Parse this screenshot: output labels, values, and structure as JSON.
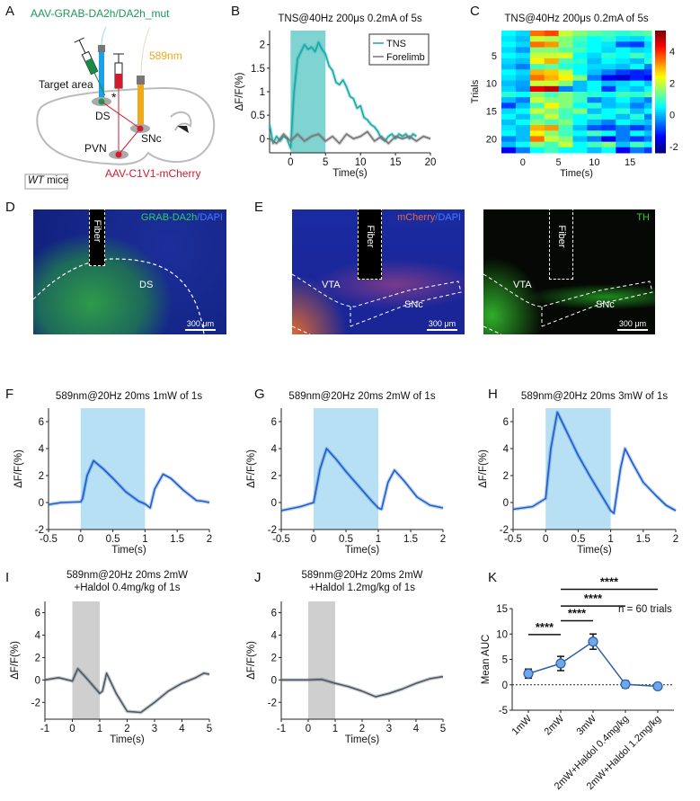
{
  "panel_labels": {
    "a": "A",
    "b": "B",
    "c": "C",
    "d": "D",
    "e": "E",
    "f": "F",
    "g": "G",
    "h": "H",
    "i": "I",
    "j": "J",
    "k": "K"
  },
  "panel_a": {
    "virus_green": "AAV-GRAB-DA2h/DA2h_mut",
    "laser": "589nm",
    "target": "Target area",
    "asterisk": "*",
    "ds": "DS",
    "snc": "SNc",
    "pvn": "PVN",
    "virus_red": "AAV-C1V1-mCherry",
    "mice_italic": "WT",
    "mice": " mice",
    "colors": {
      "green": "#1a9a55",
      "orange": "#f0a81c",
      "red": "#d01c2c",
      "blue": "#1ea0e6"
    }
  },
  "panel_d": {
    "stain_green": "GRAB-DA2h",
    "slash": "/",
    "stain_blue": "DAPI",
    "fiber": "Fiber",
    "region": "DS",
    "scale": "300 μm"
  },
  "panel_e": {
    "left": {
      "stain_red": "mCherry",
      "slash": "/",
      "stain_blue": "DAPI",
      "fiber": "Fiber",
      "vta": "VTA",
      "snc": "SNc",
      "scale": "300 μm"
    },
    "right": {
      "stain": "TH",
      "fiber": "Fiber",
      "vta": "VTA",
      "snc": "SNc",
      "scale": "300 μm"
    }
  },
  "chart_data": [
    {
      "id": "B",
      "type": "line",
      "title": "TNS@40Hz 200μs 0.2mA of 5s",
      "xlabel": "Time(s)",
      "ylabel": "ΔF/F(%)",
      "xlim": [
        -3,
        20
      ],
      "ylim": [
        -0.3,
        2.3
      ],
      "xticks": [
        0,
        5,
        10,
        15,
        20
      ],
      "yticks": [
        0,
        0.5,
        1,
        1.5,
        2
      ],
      "shade": [
        0,
        5
      ],
      "shade_color": "#7fd3d0",
      "legend": "top-right",
      "series": [
        {
          "name": "TNS",
          "color": "#1aa8a8",
          "x": [
            -3,
            -2.5,
            -2,
            -1.5,
            -1,
            -0.5,
            0,
            0.5,
            1,
            1.5,
            2,
            2.5,
            3,
            3.5,
            4,
            4.5,
            5,
            5.5,
            6,
            6.5,
            7,
            7.5,
            8,
            8.5,
            9,
            9.5,
            10,
            10.5,
            11,
            11.5,
            12,
            12.5,
            13,
            13.5,
            14,
            14.5,
            15,
            15.5,
            16,
            16.5,
            17,
            17.5,
            18
          ],
          "y": [
            0.3,
            -0.1,
            0.05,
            -0.05,
            0.05,
            0,
            -0.2,
            1.0,
            1.7,
            1.85,
            2.0,
            1.9,
            1.95,
            1.85,
            2.05,
            1.9,
            1.8,
            1.55,
            1.45,
            1.2,
            1.15,
            1.25,
            1.1,
            0.9,
            0.85,
            0.65,
            0.7,
            0.45,
            0.4,
            0.3,
            0.25,
            0.15,
            0.0,
            -0.05,
            0.05,
            0.1,
            0.0,
            0.1,
            0.05,
            0.1,
            0.0,
            0.1,
            0.05
          ]
        },
        {
          "name": "Forelimb",
          "color": "#777777",
          "x": [
            -3,
            -2,
            -1,
            0,
            1,
            2,
            3,
            4,
            5,
            6,
            7,
            8,
            9,
            10,
            11,
            12,
            13,
            14,
            15,
            16,
            17,
            18,
            19,
            20
          ],
          "y": [
            0,
            -0.1,
            0.1,
            -0.05,
            0.1,
            -0.05,
            0.05,
            0.1,
            -0.05,
            0.05,
            -0.1,
            0.1,
            0,
            0.05,
            0.15,
            -0.05,
            0.05,
            -0.1,
            0.05,
            0,
            0.05,
            -0.05,
            0.05,
            0
          ]
        }
      ]
    },
    {
      "id": "C",
      "type": "heatmap",
      "title": "TNS@40Hz 200μs 0.2mA of 5s",
      "xlabel": "Time(s)",
      "ylabel": "Trials",
      "xlim": [
        -3,
        18
      ],
      "xticks": [
        0,
        5,
        10,
        15
      ],
      "yticks": [
        5,
        10,
        15,
        20
      ],
      "colorbar_ticks": [
        -2,
        0,
        2,
        4
      ],
      "clim": [
        -2.4,
        5.3
      ],
      "colormap": "jet",
      "bin_start": [
        -3,
        -1,
        1,
        3,
        5,
        7,
        9,
        11,
        13,
        15,
        17
      ],
      "values": [
        [
          0.5,
          0.2,
          3.5,
          3.8,
          2.0,
          1.5,
          1.2,
          1.0,
          0.8,
          1.0,
          1.2
        ],
        [
          0.3,
          0.0,
          2.0,
          1.8,
          1.5,
          1.0,
          0.5,
          0.8,
          0.3,
          0.2,
          0.5
        ],
        [
          0.5,
          0.2,
          3.5,
          3.2,
          1.5,
          0.8,
          0.5,
          0.3,
          -0.8,
          -1.0,
          0.2
        ],
        [
          0.2,
          -0.3,
          1.5,
          1.5,
          1.2,
          1.0,
          0.5,
          0.2,
          0.5,
          0.2,
          0.3
        ],
        [
          0.5,
          0.3,
          2.0,
          2.0,
          2.2,
          0.5,
          0.2,
          0.8,
          0.5,
          1.0,
          0.5
        ],
        [
          0.2,
          0.0,
          2.5,
          3.0,
          1.0,
          0.8,
          0.0,
          0.5,
          0.3,
          0.0,
          0.8
        ],
        [
          0.0,
          -0.5,
          1.0,
          1.2,
          0.8,
          0.5,
          0.2,
          0.2,
          0.0,
          0.5,
          -0.5
        ],
        [
          0.5,
          0.2,
          3.0,
          2.8,
          2.0,
          0.5,
          0.0,
          -0.5,
          -1.0,
          -1.2,
          -1.0
        ],
        [
          0.3,
          0.0,
          3.5,
          3.0,
          2.5,
          1.5,
          -0.5,
          -1.5,
          -1.8,
          -1.2,
          -1.5
        ],
        [
          0.0,
          -0.2,
          2.0,
          2.0,
          1.5,
          0.0,
          0.5,
          0.0,
          0.2,
          0.5,
          0.0
        ],
        [
          0.2,
          -0.3,
          4.5,
          4.8,
          -0.5,
          0.0,
          0.5,
          -1.0,
          0.3,
          0.0,
          0.5
        ],
        [
          0.8,
          0.5,
          1.5,
          1.0,
          1.5,
          1.0,
          0.8,
          0.5,
          1.0,
          0.8,
          1.2
        ],
        [
          0.0,
          -0.5,
          2.0,
          1.5,
          1.5,
          1.0,
          -0.5,
          0.0,
          0.5,
          0.0,
          -0.5
        ],
        [
          -1.0,
          0.0,
          1.0,
          2.5,
          1.5,
          0.5,
          0.8,
          0.0,
          0.2,
          -0.5,
          0.0
        ],
        [
          0.2,
          0.5,
          2.0,
          1.5,
          1.0,
          1.5,
          0.0,
          0.5,
          0.8,
          0.0,
          0.5
        ],
        [
          0.5,
          0.0,
          1.0,
          2.0,
          1.0,
          0.5,
          0.8,
          0.5,
          0.0,
          0.8,
          -0.5
        ],
        [
          0.0,
          0.5,
          1.5,
          1.0,
          1.5,
          0.5,
          0.0,
          -0.5,
          0.5,
          0.2,
          0.0
        ],
        [
          0.3,
          0.0,
          3.0,
          3.2,
          1.0,
          0.0,
          -0.8,
          -1.0,
          -0.5,
          -1.0,
          -0.5
        ],
        [
          0.5,
          0.0,
          2.5,
          1.5,
          1.0,
          0.5,
          1.0,
          0.5,
          -0.5,
          0.5,
          0.0
        ],
        [
          -0.5,
          0.0,
          3.5,
          2.0,
          1.5,
          0.0,
          -0.5,
          -1.5,
          -0.5,
          -1.0,
          -0.5
        ],
        [
          0.0,
          0.5,
          1.5,
          1.0,
          2.0,
          0.5,
          1.0,
          1.5,
          0.0,
          1.0,
          0.5
        ],
        [
          -1.5,
          -0.5,
          0.5,
          1.0,
          0.5,
          0.5,
          0.0,
          0.5,
          -1.5,
          -0.5,
          -1.0
        ]
      ]
    },
    {
      "id": "F",
      "type": "line",
      "title": "589nm@20Hz 20ms 1mW of 1s",
      "xlabel": "Time(s)",
      "ylabel": "ΔF/F(%)",
      "xlim": [
        -0.5,
        2
      ],
      "ylim": [
        -2,
        7
      ],
      "xticks": [
        -0.5,
        0,
        0.5,
        1,
        1.5,
        2
      ],
      "yticks": [
        -2,
        0,
        2,
        4,
        6
      ],
      "shade": [
        0,
        1
      ],
      "shade_color": "#b7e0f5",
      "series": [
        {
          "color": "#1f5fc8",
          "x": [
            -0.5,
            -0.3,
            0,
            0.03,
            0.1,
            0.2,
            0.35,
            0.5,
            0.7,
            0.9,
            1.0,
            1.08,
            1.15,
            1.28,
            1.4,
            1.6,
            1.8,
            1.9,
            2
          ],
          "y": [
            -0.15,
            0,
            0.05,
            0.3,
            2.0,
            3.1,
            2.5,
            1.8,
            0.8,
            0.1,
            -0.1,
            -0.4,
            1.0,
            2.1,
            1.8,
            0.9,
            0.15,
            0.1,
            0
          ]
        }
      ]
    },
    {
      "id": "G",
      "type": "line",
      "title": "589nm@20Hz 20ms 2mW of 1s",
      "xlabel": "Time(s)",
      "ylabel": "ΔF/F(%)",
      "xlim": [
        -0.5,
        2
      ],
      "ylim": [
        -2,
        7
      ],
      "xticks": [
        -0.5,
        0,
        0.5,
        1,
        1.5,
        2
      ],
      "yticks": [
        -2,
        0,
        2,
        4,
        6
      ],
      "shade": [
        0,
        1
      ],
      "shade_color": "#b7e0f5",
      "series": [
        {
          "color": "#1f5fc8",
          "x": [
            -0.5,
            -0.2,
            0,
            0.1,
            0.2,
            0.35,
            0.5,
            0.7,
            0.9,
            1.0,
            1.05,
            1.15,
            1.25,
            1.4,
            1.6,
            1.8,
            2
          ],
          "y": [
            -0.6,
            -0.3,
            0,
            2.5,
            4.0,
            3.2,
            2.3,
            1.2,
            0.1,
            -0.4,
            -0.5,
            1.5,
            2.4,
            1.6,
            0.4,
            -0.2,
            -0.4
          ]
        }
      ]
    },
    {
      "id": "H",
      "type": "line",
      "title": "589nm@20Hz 20ms 3mW of 1s",
      "xlabel": "Time(s)",
      "ylabel": "ΔF/F(%)",
      "xlim": [
        -0.5,
        2
      ],
      "ylim": [
        -2,
        7
      ],
      "xticks": [
        -0.5,
        0,
        0.5,
        1,
        1.5,
        2
      ],
      "yticks": [
        -2,
        0,
        2,
        4,
        6
      ],
      "shade": [
        0,
        1
      ],
      "shade_color": "#b7e0f5",
      "series": [
        {
          "color": "#1f5fc8",
          "x": [
            -0.5,
            -0.2,
            0,
            0.08,
            0.18,
            0.3,
            0.5,
            0.7,
            0.9,
            1.0,
            1.05,
            1.15,
            1.22,
            1.35,
            1.5,
            1.7,
            1.85,
            2
          ],
          "y": [
            -0.5,
            -0.3,
            0.3,
            4.0,
            6.7,
            5.5,
            3.5,
            1.8,
            0.2,
            -0.6,
            -0.8,
            2.5,
            4.0,
            2.8,
            1.5,
            0.5,
            -0.2,
            -0.6
          ]
        }
      ]
    },
    {
      "id": "I",
      "type": "line",
      "title": "589nm@20Hz 20ms 2mW",
      "subtitle": "+Haldol 0.4mg/kg of 1s",
      "xlabel": "Time(s)",
      "ylabel": "ΔF/F(%)",
      "xlim": [
        -1,
        5
      ],
      "ylim": [
        -3.5,
        7
      ],
      "xticks": [
        -1,
        0,
        1,
        2,
        3,
        4,
        5
      ],
      "yticks": [
        -2,
        0,
        2,
        4,
        6
      ],
      "shade": [
        0,
        1
      ],
      "shade_color": "#cfcfcf",
      "series": [
        {
          "color": "#4d5a66",
          "x": [
            -1,
            -0.5,
            0,
            0.2,
            0.5,
            1,
            1.1,
            1.25,
            1.6,
            2,
            2.5,
            3,
            3.5,
            4,
            4.5,
            4.8,
            5
          ],
          "y": [
            0,
            0.2,
            -0.1,
            1.0,
            0.2,
            -1.2,
            -1.0,
            0.6,
            -1.2,
            -2.8,
            -2.9,
            -2.0,
            -1.0,
            -0.3,
            0.2,
            0.6,
            0.5
          ]
        }
      ]
    },
    {
      "id": "J",
      "type": "line",
      "title": "589nm@20Hz 20ms 2mW",
      "subtitle": "+Haldol 1.2mg/kg of 1s",
      "xlabel": "Time(s)",
      "ylabel": "ΔF/F(%)",
      "xlim": [
        -1,
        5
      ],
      "ylim": [
        -3.5,
        7
      ],
      "xticks": [
        -1,
        0,
        1,
        2,
        3,
        4,
        5
      ],
      "yticks": [
        -2,
        0,
        2,
        4,
        6
      ],
      "shade": [
        0,
        1
      ],
      "shade_color": "#cfcfcf",
      "series": [
        {
          "color": "#4d5a66",
          "x": [
            -1,
            0,
            0.5,
            1,
            1.5,
            2,
            2.5,
            3,
            3.5,
            4,
            4.5,
            5
          ],
          "y": [
            0,
            0,
            0.05,
            -0.3,
            -0.6,
            -1.0,
            -1.5,
            -1.2,
            -0.8,
            -0.3,
            0.1,
            0.3
          ]
        }
      ]
    },
    {
      "id": "K",
      "type": "line",
      "ylabel": "Mean AUC",
      "ylim": [
        -5,
        15
      ],
      "yticks": [
        -5,
        0,
        5,
        10,
        15
      ],
      "categories": [
        "1mW",
        "2mW",
        "3mW",
        "2mW+Haldol 0.4mg/kg",
        "2mW+Haldol 1.2mg/kg"
      ],
      "values": [
        2.2,
        4.2,
        8.5,
        0.1,
        -0.3
      ],
      "errors": [
        0.9,
        1.4,
        1.5,
        0.7,
        0.2
      ],
      "color": "#2a5ea8",
      "marker_color": "#6fa8e8",
      "zero_line": "dotted",
      "annotation": "n = 60 trials",
      "significance": [
        {
          "from": 0,
          "to": 1,
          "label": "****"
        },
        {
          "from": 1,
          "to": 2,
          "label": "****"
        },
        {
          "from": 1,
          "to": 3,
          "label": "****"
        },
        {
          "from": 1,
          "to": 4,
          "label": "****"
        }
      ]
    }
  ]
}
